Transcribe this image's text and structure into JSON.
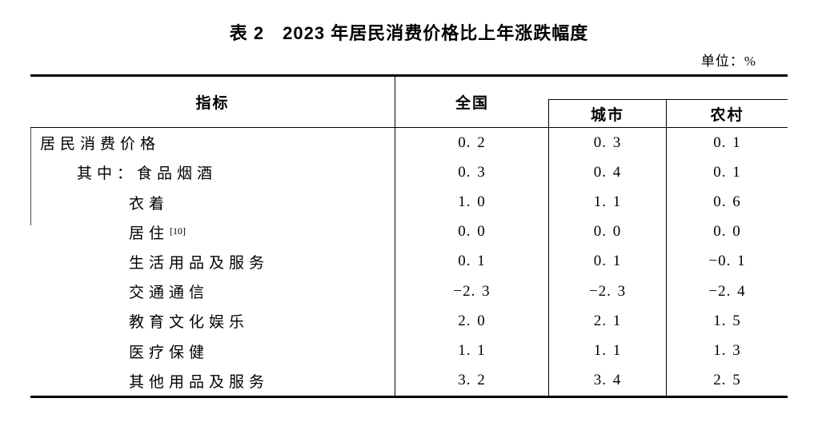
{
  "title": "表 2　2023 年居民消费价格比上年涨跌幅度",
  "unit_label": "单位：%",
  "table": {
    "header": {
      "indicator": "指标",
      "national": "全国",
      "urban": "城市",
      "rural": "农村"
    },
    "rows": [
      {
        "label": "居民消费价格",
        "indent": 0,
        "national": "0. 2",
        "urban": "0. 3",
        "rural": "0. 1"
      },
      {
        "label": "其中：食品烟酒",
        "indent": 1,
        "national": "0. 3",
        "urban": "0. 4",
        "rural": "0. 1"
      },
      {
        "label": "衣着",
        "indent": 2,
        "national": "1. 0",
        "urban": "1. 1",
        "rural": "0. 6"
      },
      {
        "label": "居住",
        "note": "[10]",
        "indent": 2,
        "national": "0. 0",
        "urban": "0. 0",
        "rural": "0. 0"
      },
      {
        "label": "生活用品及服务",
        "indent": 2,
        "national": "0. 1",
        "urban": "0. 1",
        "rural": "−0. 1"
      },
      {
        "label": "交通通信",
        "indent": 2,
        "national": "−2. 3",
        "urban": "−2. 3",
        "rural": "−2. 4"
      },
      {
        "label": "教育文化娱乐",
        "indent": 2,
        "national": "2. 0",
        "urban": "2. 1",
        "rural": "1. 5"
      },
      {
        "label": "医疗保健",
        "indent": 2,
        "national": "1. 1",
        "urban": "1. 1",
        "rural": "1. 3"
      },
      {
        "label": "其他用品及服务",
        "indent": 2,
        "national": "3. 2",
        "urban": "3. 4",
        "rural": "2. 5"
      }
    ]
  }
}
